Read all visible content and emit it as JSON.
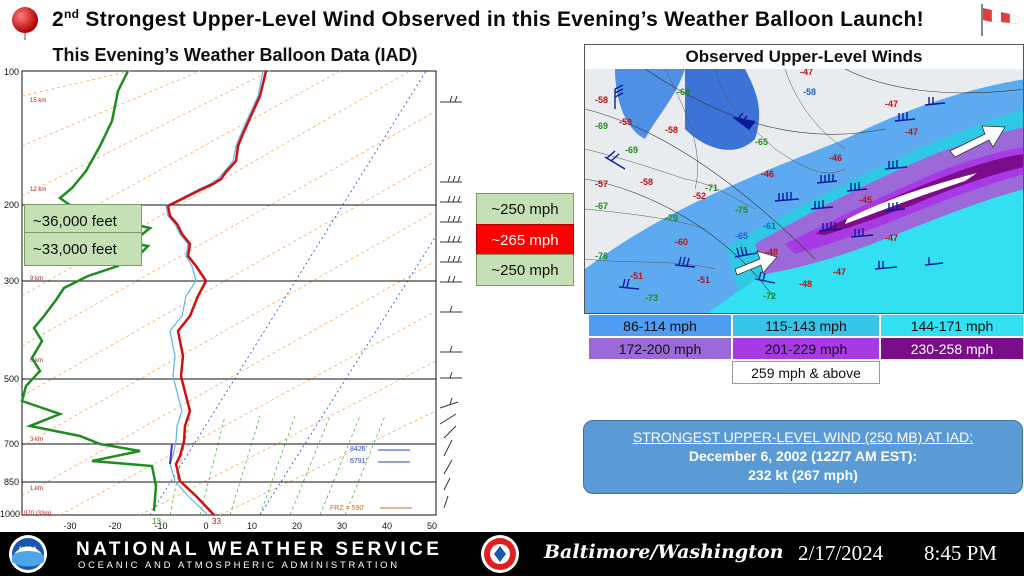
{
  "title": {
    "ordinal_number": "2",
    "ordinal_suffix": "nd",
    "rest": " Strongest Upper-Level Wind Observed in this Evening’s Weather Balloon Launch!"
  },
  "skewt": {
    "title": "This Evening’s Weather Balloon Data (IAD)",
    "pressure_levels": [
      "100",
      "200",
      "300",
      "500",
      "700",
      "850",
      "1000"
    ],
    "height_labels": [
      "15 km",
      "12 km",
      "9 km",
      "6 km",
      "3 km",
      "1 km",
      "970 (33m)"
    ],
    "temp_ticks": [
      "-30",
      "-20",
      "-10",
      "0",
      "10",
      "20",
      "30",
      "40",
      "50"
    ],
    "surface_dewpoint": "13",
    "surface_temp": "33",
    "freezing_level": "FRZ = 590'",
    "annotation_1": "8426'",
    "annotation_2": "6791'",
    "altitude_labels": [
      "~36,000 feet",
      "~33,000 feet"
    ],
    "wind_speeds": [
      "~250 mph",
      "~265 mph",
      "~250 mph"
    ]
  },
  "map": {
    "title": "Observed Upper-Level Winds",
    "station_values_red": [
      "-58",
      "-47",
      "-59",
      "-58",
      "-57",
      "-58",
      "-52",
      "-51",
      "-60",
      "-51",
      "-48",
      "-47",
      "-47",
      "-46",
      "-45",
      "-47",
      "-47",
      "-46",
      "-48"
    ],
    "station_values_green": [
      "-69",
      "-69",
      "-65",
      "-67",
      "-71",
      "-75",
      "-79",
      "-76",
      "-73",
      "-72",
      "-69"
    ],
    "station_values_blue": [
      "-58",
      "-65",
      "-61"
    ]
  },
  "legend": [
    {
      "label": "86-114 mph",
      "color": "#4f9cf3",
      "text_color": "#111111"
    },
    {
      "label": "115-143 mph",
      "color": "#38c4e8",
      "text_color": "#111111"
    },
    {
      "label": "144-171 mph",
      "color": "#33e0f2",
      "text_color": "#111111"
    },
    {
      "label": "172-200 mph",
      "color": "#9c6ad8",
      "text_color": "#111111"
    },
    {
      "label": "201-229 mph",
      "color": "#a83ae6",
      "text_color": "#111111"
    },
    {
      "label": "230-258 mph",
      "color": "#7b0c8a",
      "text_color": "#ffffff"
    },
    {
      "label": "259 mph & above",
      "color": "#ffffff",
      "text_color": "#111111"
    }
  ],
  "info_box": {
    "line1": "STRONGEST UPPER-LEVEL WIND (250 MB) AT IAD:",
    "line2": "December 6, 2002 (12Z/7 AM EST):",
    "line3": "232 kt (267 mph)"
  },
  "footer": {
    "agency": "NATIONAL WEATHER SERVICE",
    "sub_agency": "OCEANIC AND ATMOSPHERIC ADMINISTRATION",
    "noaa_logo_text": "NOAA",
    "office": "Baltimore/Washington",
    "date": "2/17/2024",
    "time": "8:45 PM"
  },
  "colors": {
    "temperature_line": "#d01010",
    "dewpoint_line": "#1e8c1e",
    "highlight": "#ff0000",
    "label_green": "#c5e0b4",
    "info_blue": "#5b9bd5"
  }
}
